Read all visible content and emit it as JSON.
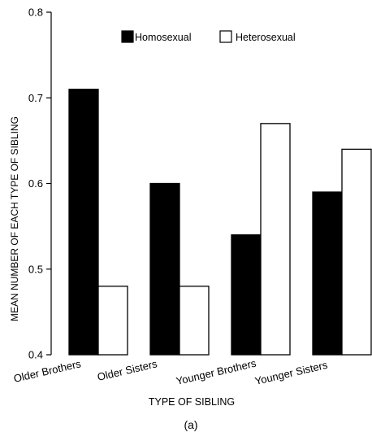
{
  "chart_data": {
    "type": "bar",
    "categories": [
      "Older Brothers",
      "Older Sisters",
      "Younger Brothers",
      "Younger Sisters"
    ],
    "series": [
      {
        "name": "Homosexual",
        "values": [
          0.71,
          0.6,
          0.54,
          0.59
        ],
        "color": "#000000"
      },
      {
        "name": "Heterosexual",
        "values": [
          0.48,
          0.48,
          0.67,
          0.64
        ],
        "color": "#ffffff"
      }
    ],
    "xlabel": "TYPE OF SIBLING",
    "ylabel": "MEAN NUMBER OF EACH TYPE OF SIBLING",
    "ylim": [
      0.4,
      0.8
    ],
    "yticks": [
      0.4,
      0.5,
      0.6,
      0.7,
      0.8
    ],
    "ytick_labels": [
      "0.4",
      "0.5",
      "0.6",
      "0.7",
      "0.8"
    ],
    "legend_position": "top",
    "grid": false,
    "caption": "(a)"
  }
}
